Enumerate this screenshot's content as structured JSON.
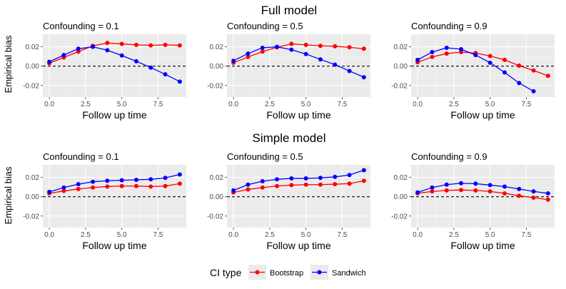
{
  "rows": [
    {
      "title": "Full model",
      "ylabel": "Empirical bias",
      "panels": [
        {
          "subtitle": "Confounding = 0.1",
          "xlabel": "Follow up time"
        },
        {
          "subtitle": "Confounding = 0.5",
          "xlabel": "Follow up time"
        },
        {
          "subtitle": "Confounding = 0.9",
          "xlabel": "Follow up time"
        }
      ]
    },
    {
      "title": "Simple model",
      "ylabel": "Empirical bias",
      "panels": [
        {
          "subtitle": "Confounding = 0.1",
          "xlabel": "Follow up time"
        },
        {
          "subtitle": "Confounding = 0.5",
          "xlabel": "Follow up time"
        },
        {
          "subtitle": "Confounding = 0.9",
          "xlabel": "Follow up time"
        }
      ]
    }
  ],
  "legend": {
    "title": "CI type",
    "items": [
      {
        "label": "Bootstrap",
        "color": "#ff0000"
      },
      {
        "label": "Sandwich",
        "color": "#0000ff"
      }
    ]
  },
  "chart_data": [
    {
      "type": "line",
      "title": "Full model",
      "subtitle": "Confounding = 0.1",
      "xlabel": "Follow up time",
      "ylabel": "Empirical bias",
      "xlim": [
        -0.45,
        9.45
      ],
      "ylim": [
        -0.032,
        0.033
      ],
      "xticks": [
        0,
        2.5,
        5,
        7.5
      ],
      "xtick_labels": [
        "0.0",
        "2.5",
        "5.0",
        "7.5"
      ],
      "yticks": [
        -0.02,
        0,
        0.02
      ],
      "ytick_labels": [
        "-0.02",
        "0.00",
        "0.02"
      ],
      "reference_line": 0,
      "grid": true,
      "legend": "bottom",
      "series": [
        {
          "name": "Bootstrap",
          "color": "#ff0000",
          "x": [
            0,
            1,
            2,
            3,
            4,
            5,
            6,
            7,
            8,
            9
          ],
          "y": [
            0.003,
            0.009,
            0.015,
            0.021,
            0.024,
            0.023,
            0.022,
            0.0215,
            0.022,
            0.0215
          ]
        },
        {
          "name": "Sandwich",
          "color": "#0000ff",
          "x": [
            0,
            1,
            2,
            3,
            4,
            5,
            6,
            7,
            8,
            9
          ],
          "y": [
            0.0045,
            0.0115,
            0.018,
            0.02,
            0.0165,
            0.011,
            0.005,
            -0.0015,
            -0.0085,
            -0.016
          ]
        }
      ]
    },
    {
      "type": "line",
      "title": "Full model",
      "subtitle": "Confounding = 0.5",
      "xlabel": "Follow up time",
      "ylabel": "Empirical bias",
      "xlim": [
        -0.45,
        9.45
      ],
      "ylim": [
        -0.032,
        0.033
      ],
      "xticks": [
        0,
        2.5,
        5,
        7.5
      ],
      "xtick_labels": [
        "0.0",
        "2.5",
        "5.0",
        "7.5"
      ],
      "yticks": [
        -0.02,
        0,
        0.02
      ],
      "ytick_labels": [
        "-0.02",
        "0.00",
        "0.02"
      ],
      "reference_line": 0,
      "grid": true,
      "legend": "bottom",
      "series": [
        {
          "name": "Bootstrap",
          "color": "#ff0000",
          "x": [
            0,
            1,
            2,
            3,
            4,
            5,
            6,
            7,
            8,
            9
          ],
          "y": [
            0.0035,
            0.0095,
            0.015,
            0.0195,
            0.023,
            0.022,
            0.021,
            0.0205,
            0.0195,
            0.018
          ]
        },
        {
          "name": "Sandwich",
          "color": "#0000ff",
          "x": [
            0,
            1,
            2,
            3,
            4,
            5,
            6,
            7,
            8,
            9
          ],
          "y": [
            0.0055,
            0.013,
            0.019,
            0.02,
            0.017,
            0.0125,
            0.007,
            0.0015,
            -0.005,
            -0.0115
          ]
        }
      ]
    },
    {
      "type": "line",
      "title": "Full model",
      "subtitle": "Confounding = 0.9",
      "xlabel": "Follow up time",
      "ylabel": "Empirical bias",
      "xlim": [
        -0.45,
        9.45
      ],
      "ylim": [
        -0.032,
        0.033
      ],
      "xticks": [
        0,
        2.5,
        5,
        7.5
      ],
      "xtick_labels": [
        "0.0",
        "2.5",
        "5.0",
        "7.5"
      ],
      "yticks": [
        -0.02,
        0,
        0.02
      ],
      "ytick_labels": [
        "-0.02",
        "0.00",
        "0.02"
      ],
      "reference_line": 0,
      "grid": true,
      "legend": "bottom",
      "series": [
        {
          "name": "Bootstrap",
          "color": "#ff0000",
          "x": [
            0,
            1,
            2,
            3,
            4,
            5,
            6,
            7,
            8,
            9
          ],
          "y": [
            0.004,
            0.0095,
            0.013,
            0.0145,
            0.0135,
            0.0105,
            0.0065,
            0.0005,
            -0.0045,
            -0.01
          ]
        },
        {
          "name": "Sandwich",
          "color": "#0000ff",
          "x": [
            0,
            1,
            2,
            3,
            4,
            5,
            6,
            7,
            8
          ],
          "y": [
            0.0065,
            0.0145,
            0.019,
            0.0175,
            0.0115,
            0.0035,
            -0.0065,
            -0.0175,
            -0.026
          ]
        }
      ]
    },
    {
      "type": "line",
      "title": "Simple model",
      "subtitle": "Confounding = 0.1",
      "xlabel": "Follow up time",
      "ylabel": "Empirical bias",
      "xlim": [
        -0.45,
        9.45
      ],
      "ylim": [
        -0.032,
        0.033
      ],
      "xticks": [
        0,
        2.5,
        5,
        7.5
      ],
      "xtick_labels": [
        "0.0",
        "2.5",
        "5.0",
        "7.5"
      ],
      "yticks": [
        -0.02,
        0,
        0.02
      ],
      "ytick_labels": [
        "-0.02",
        "0.00",
        "0.02"
      ],
      "reference_line": 0,
      "grid": true,
      "legend": "bottom",
      "series": [
        {
          "name": "Bootstrap",
          "color": "#ff0000",
          "x": [
            0,
            1,
            2,
            3,
            4,
            5,
            6,
            7,
            8,
            9
          ],
          "y": [
            0.0035,
            0.006,
            0.008,
            0.0095,
            0.0105,
            0.011,
            0.011,
            0.0105,
            0.011,
            0.0135
          ]
        },
        {
          "name": "Sandwich",
          "color": "#0000ff",
          "x": [
            0,
            1,
            2,
            3,
            4,
            5,
            6,
            7,
            8,
            9
          ],
          "y": [
            0.005,
            0.0095,
            0.013,
            0.0155,
            0.0165,
            0.017,
            0.0175,
            0.018,
            0.0195,
            0.023
          ]
        }
      ]
    },
    {
      "type": "line",
      "title": "Simple model",
      "subtitle": "Confounding = 0.5",
      "xlabel": "Follow up time",
      "ylabel": "Empirical bias",
      "xlim": [
        -0.45,
        9.45
      ],
      "ylim": [
        -0.032,
        0.033
      ],
      "xticks": [
        0,
        2.5,
        5,
        7.5
      ],
      "xtick_labels": [
        "0.0",
        "2.5",
        "5.0",
        "7.5"
      ],
      "yticks": [
        -0.02,
        0,
        0.02
      ],
      "ytick_labels": [
        "-0.02",
        "0.00",
        "0.02"
      ],
      "reference_line": 0,
      "grid": true,
      "legend": "bottom",
      "series": [
        {
          "name": "Bootstrap",
          "color": "#ff0000",
          "x": [
            0,
            1,
            2,
            3,
            4,
            5,
            6,
            7,
            8,
            9
          ],
          "y": [
            0.0045,
            0.0075,
            0.0095,
            0.011,
            0.012,
            0.0125,
            0.0125,
            0.013,
            0.0135,
            0.0165
          ]
        },
        {
          "name": "Sandwich",
          "color": "#0000ff",
          "x": [
            0,
            1,
            2,
            3,
            4,
            5,
            6,
            7,
            8,
            9
          ],
          "y": [
            0.0065,
            0.0125,
            0.016,
            0.018,
            0.019,
            0.019,
            0.0195,
            0.0205,
            0.0225,
            0.0275
          ]
        }
      ]
    },
    {
      "type": "line",
      "title": "Simple model",
      "subtitle": "Confounding = 0.9",
      "xlabel": "Follow up time",
      "ylabel": "Empirical bias",
      "xlim": [
        -0.45,
        9.45
      ],
      "ylim": [
        -0.032,
        0.033
      ],
      "xticks": [
        0,
        2.5,
        5,
        7.5
      ],
      "xtick_labels": [
        "0.0",
        "2.5",
        "5.0",
        "7.5"
      ],
      "yticks": [
        -0.02,
        0,
        0.02
      ],
      "ytick_labels": [
        "-0.02",
        "0.00",
        "0.02"
      ],
      "reference_line": 0,
      "grid": true,
      "legend": "bottom",
      "series": [
        {
          "name": "Bootstrap",
          "color": "#ff0000",
          "x": [
            0,
            1,
            2,
            3,
            4,
            5,
            6,
            7,
            8,
            9
          ],
          "y": [
            0.0035,
            0.0055,
            0.0065,
            0.007,
            0.0065,
            0.0055,
            0.0035,
            0.001,
            -0.001,
            -0.003
          ]
        },
        {
          "name": "Sandwich",
          "color": "#0000ff",
          "x": [
            0,
            1,
            2,
            3,
            4,
            5,
            6,
            7,
            8,
            9
          ],
          "y": [
            0.0045,
            0.0095,
            0.0125,
            0.014,
            0.0135,
            0.012,
            0.0105,
            0.008,
            0.0055,
            0.0035
          ]
        }
      ]
    }
  ]
}
